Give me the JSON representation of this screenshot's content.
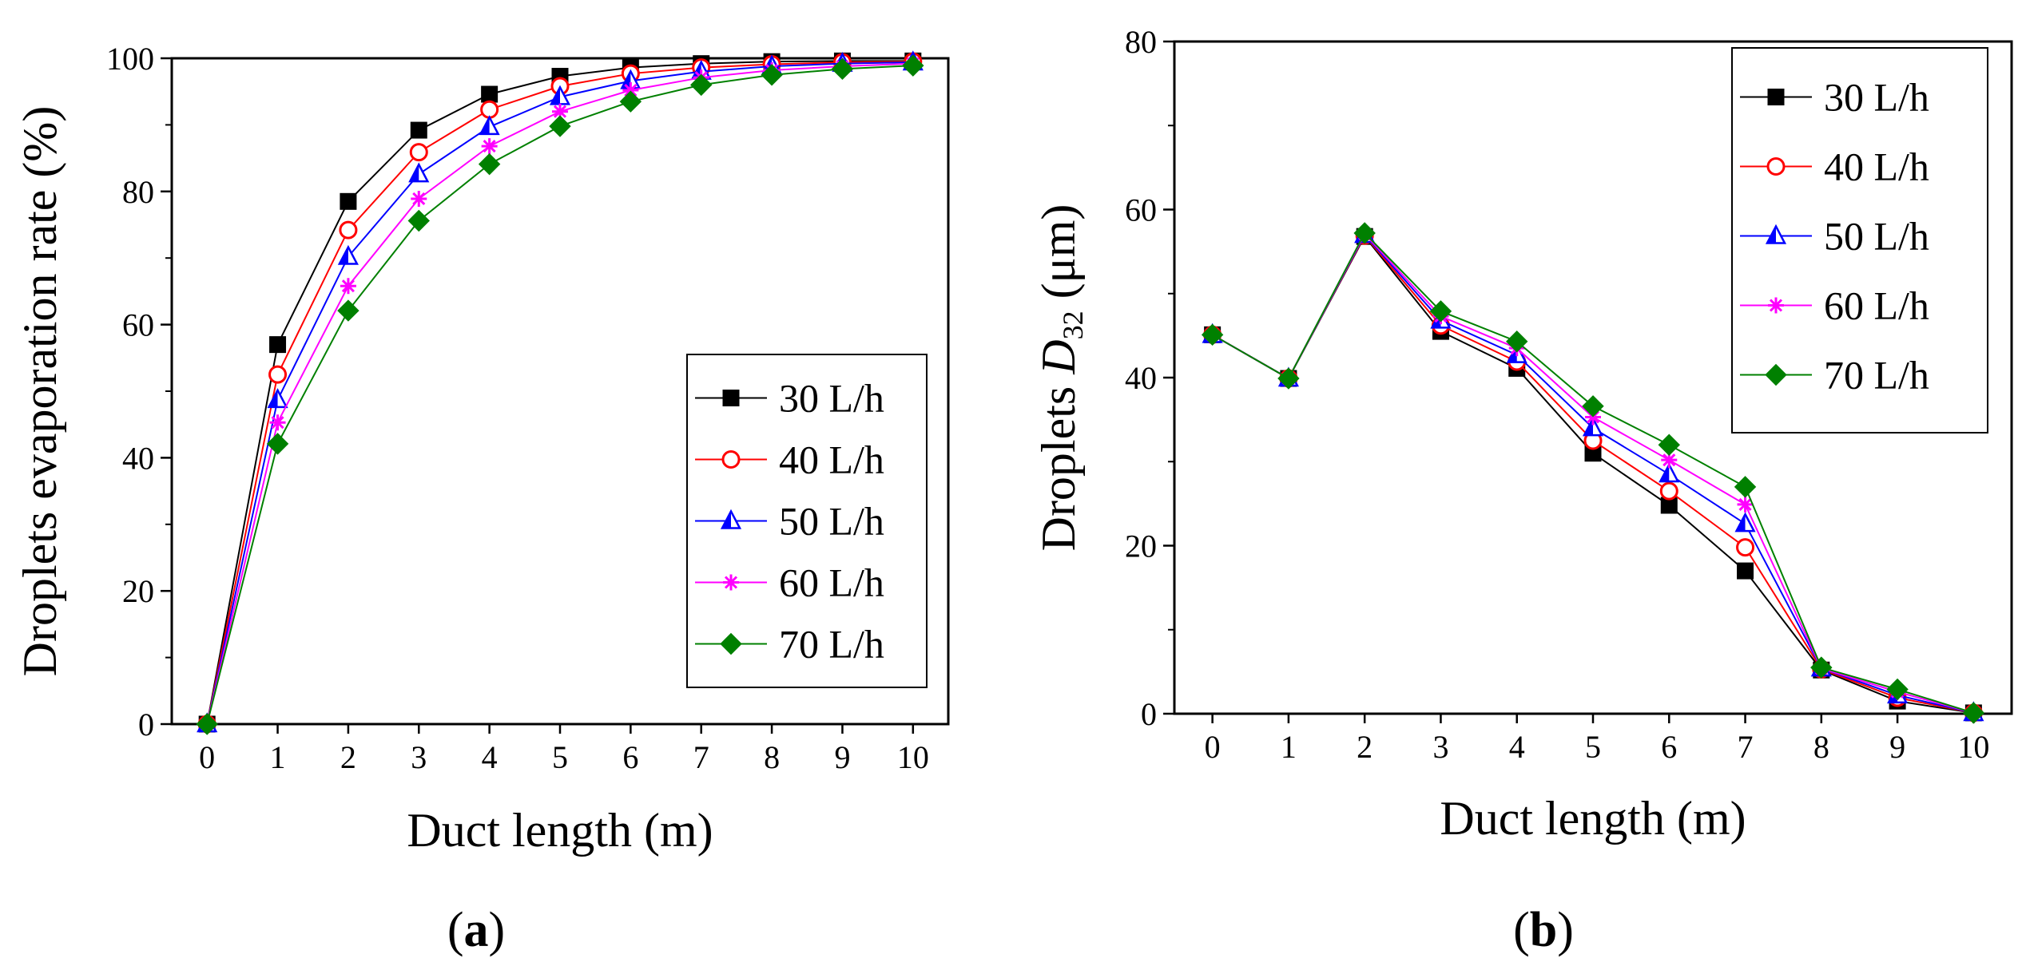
{
  "chart_data": [
    {
      "type": "line",
      "panel_label": "(a)",
      "xlabel": "Duct length (m)",
      "ylabel": "Droplets evaporation rate (%)",
      "x": [
        0,
        1,
        2,
        3,
        4,
        5,
        6,
        7,
        8,
        9,
        10
      ],
      "xlim": [
        -0.5,
        10.5
      ],
      "ylim": [
        0,
        100
      ],
      "xticks": [
        "0",
        "1",
        "2",
        "3",
        "4",
        "5",
        "6",
        "7",
        "8",
        "9",
        "10"
      ],
      "yticks": [
        "0",
        "20",
        "40",
        "60",
        "80",
        "100"
      ],
      "legend_position": "bottom-right",
      "series": [
        {
          "name": "30 L/h",
          "color": "#000000",
          "marker": "filled-square",
          "values": [
            0,
            57,
            78.5,
            89.2,
            94.6,
            97.3,
            98.6,
            99.2,
            99.5,
            99.6,
            99.6
          ]
        },
        {
          "name": "40 L/h",
          "color": "#ff0000",
          "marker": "open-circle",
          "values": [
            0,
            52.5,
            74.2,
            85.9,
            92.3,
            95.8,
            97.7,
            98.6,
            99.1,
            99.4,
            99.5
          ]
        },
        {
          "name": "50 L/h",
          "color": "#0000ff",
          "marker": "half-triangle",
          "values": [
            0,
            48.7,
            70.2,
            82.6,
            89.7,
            94.2,
            96.6,
            98.0,
            98.8,
            99.2,
            99.4
          ]
        },
        {
          "name": "60 L/h",
          "color": "#ff00ff",
          "marker": "asterisk",
          "values": [
            0,
            45.3,
            65.8,
            78.9,
            86.8,
            92.0,
            95.2,
            97.1,
            98.2,
            98.8,
            99.2
          ]
        },
        {
          "name": "70 L/h",
          "color": "#008000",
          "marker": "filled-diamond",
          "values": [
            0,
            42.1,
            62.1,
            75.6,
            84.1,
            89.8,
            93.5,
            96.0,
            97.5,
            98.4,
            98.9
          ]
        }
      ]
    },
    {
      "type": "line",
      "panel_label": "(b)",
      "xlabel": "Duct length (m)",
      "ylabel_main": "Droplets  ",
      "ylabel_var": "D",
      "ylabel_sub": "32",
      "ylabel_unit": " (μm)",
      "x": [
        0,
        1,
        2,
        3,
        4,
        5,
        6,
        7,
        8,
        9,
        10
      ],
      "xlim": [
        -0.5,
        10.5
      ],
      "ylim": [
        0,
        80
      ],
      "xticks": [
        "0",
        "1",
        "2",
        "3",
        "4",
        "5",
        "6",
        "7",
        "8",
        "9",
        "10"
      ],
      "yticks": [
        "0",
        "20",
        "40",
        "60",
        "80"
      ],
      "legend_position": "top-right",
      "series": [
        {
          "name": "30 L/h",
          "color": "#000000",
          "marker": "filled-square",
          "values": [
            45.1,
            39.9,
            56.8,
            45.5,
            41.1,
            31.0,
            24.8,
            17.0,
            5.2,
            1.5,
            0.1
          ]
        },
        {
          "name": "40 L/h",
          "color": "#ff0000",
          "marker": "open-circle",
          "values": [
            45.1,
            39.9,
            56.9,
            46.2,
            41.9,
            32.5,
            26.5,
            19.8,
            5.3,
            1.9,
            0.1
          ]
        },
        {
          "name": "50 L/h",
          "color": "#0000ff",
          "marker": "half-triangle",
          "values": [
            45.1,
            39.9,
            57.0,
            46.8,
            42.7,
            34.0,
            28.5,
            22.6,
            5.4,
            2.2,
            0.1
          ]
        },
        {
          "name": "60 L/h",
          "color": "#ff00ff",
          "marker": "asterisk",
          "values": [
            45.1,
            39.9,
            57.1,
            47.3,
            43.5,
            35.3,
            30.2,
            24.9,
            5.4,
            2.6,
            0.1
          ]
        },
        {
          "name": "70 L/h",
          "color": "#008000",
          "marker": "filled-diamond",
          "values": [
            45.1,
            39.9,
            57.2,
            47.9,
            44.3,
            36.6,
            32.0,
            27.0,
            5.5,
            2.9,
            0.1
          ]
        }
      ]
    }
  ]
}
